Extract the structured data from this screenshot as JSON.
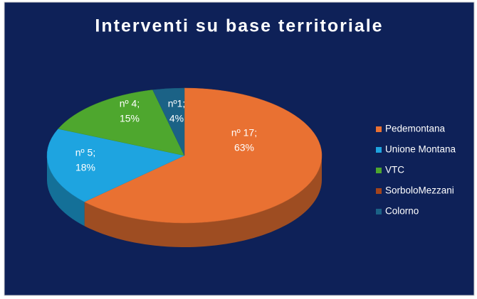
{
  "chart_data": {
    "type": "pie3d",
    "title": "Interventi su base territoriale",
    "categories": [
      "Pedemontana",
      "Unione Montana",
      "VTC",
      "SorboloMezzani",
      "Colorno"
    ],
    "values": [
      17,
      5,
      4,
      0,
      1
    ],
    "value_labels": [
      [
        "nº 17;",
        "63%"
      ],
      [
        "nº 5;",
        "18%"
      ],
      [
        "nº 4;",
        "15%"
      ],
      null,
      [
        "nº1;",
        "4%"
      ]
    ],
    "colors": [
      "#e97132",
      "#1ea4e0",
      "#4ea72e",
      "#a3441c",
      "#1b6286"
    ],
    "legend": "right"
  }
}
